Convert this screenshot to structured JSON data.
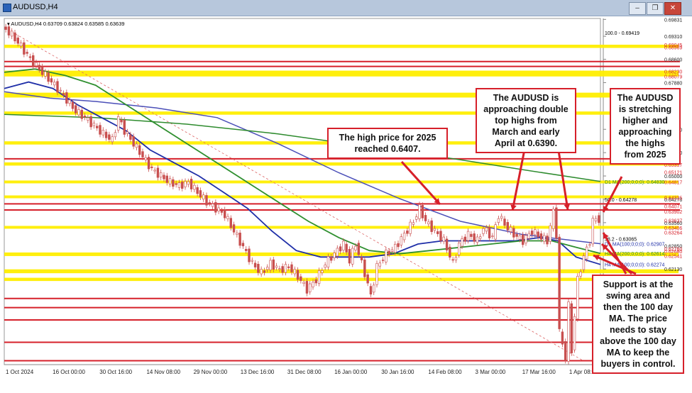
{
  "window": {
    "title": "AUDUSD,H4",
    "min_label": "–",
    "restore_label": "❐",
    "close_label": "✕"
  },
  "chart_data": {
    "type": "candlestick",
    "symbol_header": "AUDUSD,H4  0.63709  0.63824  0.63585  0.63639",
    "price_range": [
      0.6208,
      0.6986
    ],
    "x_labels": [
      "1 Oct 2024",
      "16 Oct 00:00",
      "30 Oct 16:00",
      "14 Nov 08:00",
      "29 Nov 00:00",
      "13 Dec 16:00",
      "31 Dec 08:00",
      "16 Jan 00:00",
      "30 Jan 16:00",
      "14 Feb 08:00",
      "3 Mar 00:00",
      "17 Mar 16:00",
      "1 Apr 08:00"
    ],
    "y_ticks": [
      "0.69831",
      "0.69310",
      "0.68600",
      "0.67880",
      "0.66440",
      "0.65720",
      "0.65000",
      "0.64278",
      "0.63560",
      "0.62850",
      "0.62130"
    ],
    "level_labels": [
      {
        "price": 0.69419,
        "text": "100.0 - 0.69419",
        "color": "#000000"
      },
      {
        "price": 0.69045,
        "text": "0.69045",
        "color": "#d6202a"
      },
      {
        "price": 0.68969,
        "text": "0.68969",
        "color": "#d6202a"
      },
      {
        "price": 0.6823,
        "text": "0.68230",
        "color": "#d6202a"
      },
      {
        "price": 0.68079,
        "text": "0.68079",
        "color": "#d6202a"
      },
      {
        "price": 0.65357,
        "text": "0.65357",
        "color": "#d6202a"
      },
      {
        "price": 0.65121,
        "text": "0.65121",
        "color": "#d6202a"
      },
      {
        "price": 0.64817,
        "text": "0.64817",
        "color": "#d6202a"
      },
      {
        "price": 0.64335,
        "text": "0.64335",
        "color": "#d6202a"
      },
      {
        "price": 0.64278,
        "text": "50.0 - 0.64278",
        "color": "#000000"
      },
      {
        "price": 0.64071,
        "text": "0.64071",
        "color": "#d6202a"
      },
      {
        "price": 0.63902,
        "text": "0.63902",
        "color": "#d6202a"
      },
      {
        "price": 0.63637,
        "text": "0.63637",
        "color": "#d6202a"
      },
      {
        "price": 0.63406,
        "text": "0.63406",
        "color": "#d6202a"
      },
      {
        "price": 0.63264,
        "text": "0.63264",
        "color": "#d6202a"
      },
      {
        "price": 0.63065,
        "text": "38.2 - 0.63065",
        "color": "#000000"
      },
      {
        "price": 0.62907,
        "text": "D1 MA(100;0;0;0): 0.62907",
        "color": "#1f2fa8"
      },
      {
        "price": 0.6276,
        "text": "0.62760",
        "color": "#d6202a"
      },
      {
        "price": 0.6268,
        "text": "0.62680",
        "color": "#d6202a"
      },
      {
        "price": 0.62614,
        "text": "H4 MA(200;0;0;0): 0.62614",
        "color": "#2e8b2e"
      },
      {
        "price": 0.62541,
        "text": "0.62541",
        "color": "#d6202a"
      },
      {
        "price": 0.62274,
        "text": "H4 MA(100;0;0;0): 0.62274",
        "color": "#1f2fa8"
      },
      {
        "price": 0.6483,
        "text": "D1 MA(200;0;0;0): 0.64830",
        "color": "#2e8b2e"
      }
    ],
    "yellow_zones": [
      [
        0.6895,
        0.6905
      ],
      [
        0.6807,
        0.6825
      ],
      [
        0.6742,
        0.6757
      ],
      [
        0.6689,
        0.6699
      ],
      [
        0.6597,
        0.6607
      ],
      [
        0.6532,
        0.6542
      ],
      [
        0.6479,
        0.6486
      ],
      [
        0.6433,
        0.644
      ],
      [
        0.6339,
        0.6346
      ],
      [
        0.6253,
        0.6264
      ],
      [
        0.62,
        0.6212
      ],
      [
        0.6176,
        0.6186
      ]
    ],
    "red_lines": [
      0.6853,
      0.6838,
      0.6553,
      0.6414,
      0.6395,
      0.6122,
      0.6094,
      0.6056,
      0.5987,
      0.593
    ],
    "series": [
      {
        "name": "AUDUSD H4",
        "points": [
          [
            0,
            0.696
          ],
          [
            3,
            0.6935
          ],
          [
            6,
            0.69
          ],
          [
            9,
            0.686
          ],
          [
            12,
            0.683
          ],
          [
            15,
            0.68
          ],
          [
            18,
            0.677
          ],
          [
            21,
            0.6735
          ],
          [
            24,
            0.67
          ],
          [
            27,
            0.668
          ],
          [
            30,
            0.6655
          ],
          [
            33,
            0.663
          ],
          [
            36,
            0.661
          ],
          [
            38,
            0.668
          ],
          [
            40,
            0.664
          ],
          [
            43,
            0.66
          ],
          [
            46,
            0.656
          ],
          [
            49,
            0.652
          ],
          [
            52,
            0.65
          ],
          [
            55,
            0.648
          ],
          [
            58,
            0.647
          ],
          [
            61,
            0.648
          ],
          [
            64,
            0.645
          ],
          [
            67,
            0.642
          ],
          [
            70,
            0.64
          ],
          [
            73,
            0.638
          ],
          [
            76,
            0.633
          ],
          [
            79,
            0.628
          ],
          [
            82,
            0.623
          ],
          [
            85,
            0.62
          ],
          [
            88,
            0.623
          ],
          [
            91,
            0.621
          ],
          [
            94,
            0.622
          ],
          [
            97,
            0.619
          ],
          [
            100,
            0.615
          ],
          [
            103,
            0.618
          ],
          [
            106,
            0.623
          ],
          [
            109,
            0.626
          ],
          [
            112,
            0.629
          ],
          [
            114,
            0.624
          ],
          [
            116,
            0.629
          ],
          [
            119,
            0.62
          ],
          [
            121,
            0.613
          ],
          [
            123,
            0.622
          ],
          [
            126,
            0.626
          ],
          [
            129,
            0.628
          ],
          [
            132,
            0.632
          ],
          [
            135,
            0.636
          ],
          [
            137,
            0.64
          ],
          [
            139,
            0.636
          ],
          [
            142,
            0.633
          ],
          [
            145,
            0.63
          ],
          [
            148,
            0.623
          ],
          [
            150,
            0.629
          ],
          [
            153,
            0.632
          ],
          [
            156,
            0.63
          ],
          [
            158,
            0.634
          ],
          [
            161,
            0.631
          ],
          [
            163,
            0.638
          ],
          [
            165,
            0.635
          ],
          [
            168,
            0.632
          ],
          [
            171,
            0.63
          ],
          [
            174,
            0.633
          ],
          [
            177,
            0.631
          ],
          [
            179,
            0.63
          ],
          [
            181,
            0.639
          ],
          [
            182,
            0.632
          ],
          [
            183,
            0.602
          ],
          [
            185,
            0.594
          ],
          [
            186,
            0.61
          ],
          [
            187,
            0.596
          ],
          [
            189,
            0.618
          ],
          [
            191,
            0.625
          ],
          [
            193,
            0.63
          ],
          [
            194,
            0.636
          ],
          [
            195,
            0.637
          ],
          [
            196,
            0.6364
          ]
        ]
      },
      {
        "name": "D1 MA(100)",
        "points": [
          [
            0,
            0.676
          ],
          [
            15,
            0.674
          ],
          [
            30,
            0.673
          ],
          [
            50,
            0.671
          ],
          [
            70,
            0.668
          ],
          [
            90,
            0.66
          ],
          [
            110,
            0.651
          ],
          [
            130,
            0.643
          ],
          [
            150,
            0.636
          ],
          [
            170,
            0.632
          ],
          [
            196,
            0.6291
          ]
        ]
      },
      {
        "name": "D1 MA(200)",
        "points": [
          [
            0,
            0.669
          ],
          [
            30,
            0.668
          ],
          [
            60,
            0.666
          ],
          [
            90,
            0.663
          ],
          [
            120,
            0.659
          ],
          [
            150,
            0.655
          ],
          [
            170,
            0.652
          ],
          [
            196,
            0.6483
          ]
        ]
      },
      {
        "name": "H4 MA(100)",
        "points": [
          [
            0,
            0.677
          ],
          [
            8,
            0.679
          ],
          [
            16,
            0.677
          ],
          [
            24,
            0.672
          ],
          [
            32,
            0.668
          ],
          [
            40,
            0.664
          ],
          [
            48,
            0.658
          ],
          [
            56,
            0.654
          ],
          [
            64,
            0.65
          ],
          [
            72,
            0.645
          ],
          [
            80,
            0.64
          ],
          [
            88,
            0.633
          ],
          [
            96,
            0.627
          ],
          [
            104,
            0.625
          ],
          [
            112,
            0.625
          ],
          [
            120,
            0.625
          ],
          [
            128,
            0.626
          ],
          [
            136,
            0.629
          ],
          [
            144,
            0.63
          ],
          [
            152,
            0.63
          ],
          [
            160,
            0.63
          ],
          [
            168,
            0.63
          ],
          [
            176,
            0.631
          ],
          [
            182,
            0.63
          ],
          [
            188,
            0.625
          ],
          [
            196,
            0.6227
          ]
        ]
      },
      {
        "name": "H4 MA(200)",
        "points": [
          [
            0,
            0.682
          ],
          [
            10,
            0.683
          ],
          [
            20,
            0.681
          ],
          [
            30,
            0.678
          ],
          [
            40,
            0.672
          ],
          [
            50,
            0.666
          ],
          [
            60,
            0.66
          ],
          [
            70,
            0.654
          ],
          [
            80,
            0.648
          ],
          [
            90,
            0.642
          ],
          [
            100,
            0.636
          ],
          [
            110,
            0.631
          ],
          [
            120,
            0.627
          ],
          [
            130,
            0.626
          ],
          [
            140,
            0.627
          ],
          [
            150,
            0.628
          ],
          [
            160,
            0.629
          ],
          [
            170,
            0.63
          ],
          [
            180,
            0.63
          ],
          [
            188,
            0.628
          ],
          [
            196,
            0.6261
          ]
        ]
      }
    ],
    "fib_line": [
      [
        0,
        0.6958
      ],
      [
        190,
        0.5932
      ]
    ]
  },
  "notes": {
    "high2025": "The high price for 2025 reached 0.6407.",
    "doubletop": "The AUDUSD is approaching double top highs from March and early April at 0.6390.",
    "stretching": "The AUDUSD is stretching higher and approaching the highs from 2025",
    "support": "Support is at the swing area and then the 100 day MA. The price needs to stay above the 100 day MA to keep the buyers in control."
  },
  "colors": {
    "zone": "#ffee00",
    "red": "#d6202a",
    "candle": "#c84f4f",
    "ma_blue": "#1f2fa8",
    "ma_green": "#2e8b2e",
    "ma_purple": "#4b4fb8"
  }
}
